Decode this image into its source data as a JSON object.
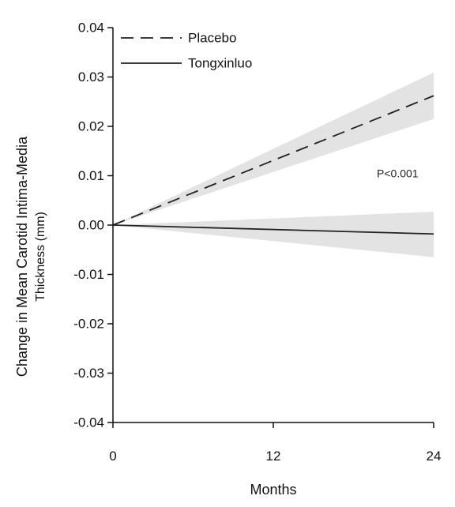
{
  "chart_data": {
    "type": "line",
    "title": "",
    "xlabel": "Months",
    "ylabel": [
      "Change in Mean Carotid Intima-Media",
      "Thickness (mm)"
    ],
    "x": [
      0,
      12,
      24
    ],
    "x_tick_labels": [
      "0",
      "12",
      "24"
    ],
    "xlim": [
      0,
      24
    ],
    "ylim": [
      -0.04,
      0.04
    ],
    "y_ticks": [
      0.04,
      0.03,
      0.02,
      0.01,
      0.0,
      -0.01,
      -0.02,
      -0.03,
      -0.04
    ],
    "y_tick_labels": [
      "0.04",
      "0.03",
      "0.02",
      "0.01",
      "0.00",
      "-0.01",
      "-0.02",
      "-0.03",
      "-0.04"
    ],
    "grid": false,
    "legend_position": "top-left",
    "series": [
      {
        "name": "Placebo",
        "line_style": "dashed",
        "color": "#222222",
        "x": [
          0,
          24
        ],
        "y": [
          0.0,
          0.0262
        ],
        "ci_lower": [
          0.0,
          0.0215
        ],
        "ci_upper": [
          0.0,
          0.0309
        ]
      },
      {
        "name": "Tongxinluo",
        "line_style": "solid",
        "color": "#222222",
        "x": [
          0,
          24
        ],
        "y": [
          0.0,
          -0.0018
        ],
        "ci_lower": [
          0.0,
          -0.0065
        ],
        "ci_upper": [
          0.0,
          0.0027
        ]
      }
    ],
    "ci_color": "#e3e3e3",
    "annotations": [
      {
        "text": "P<0.001",
        "x": 21.3,
        "y": 0.0103
      }
    ]
  }
}
